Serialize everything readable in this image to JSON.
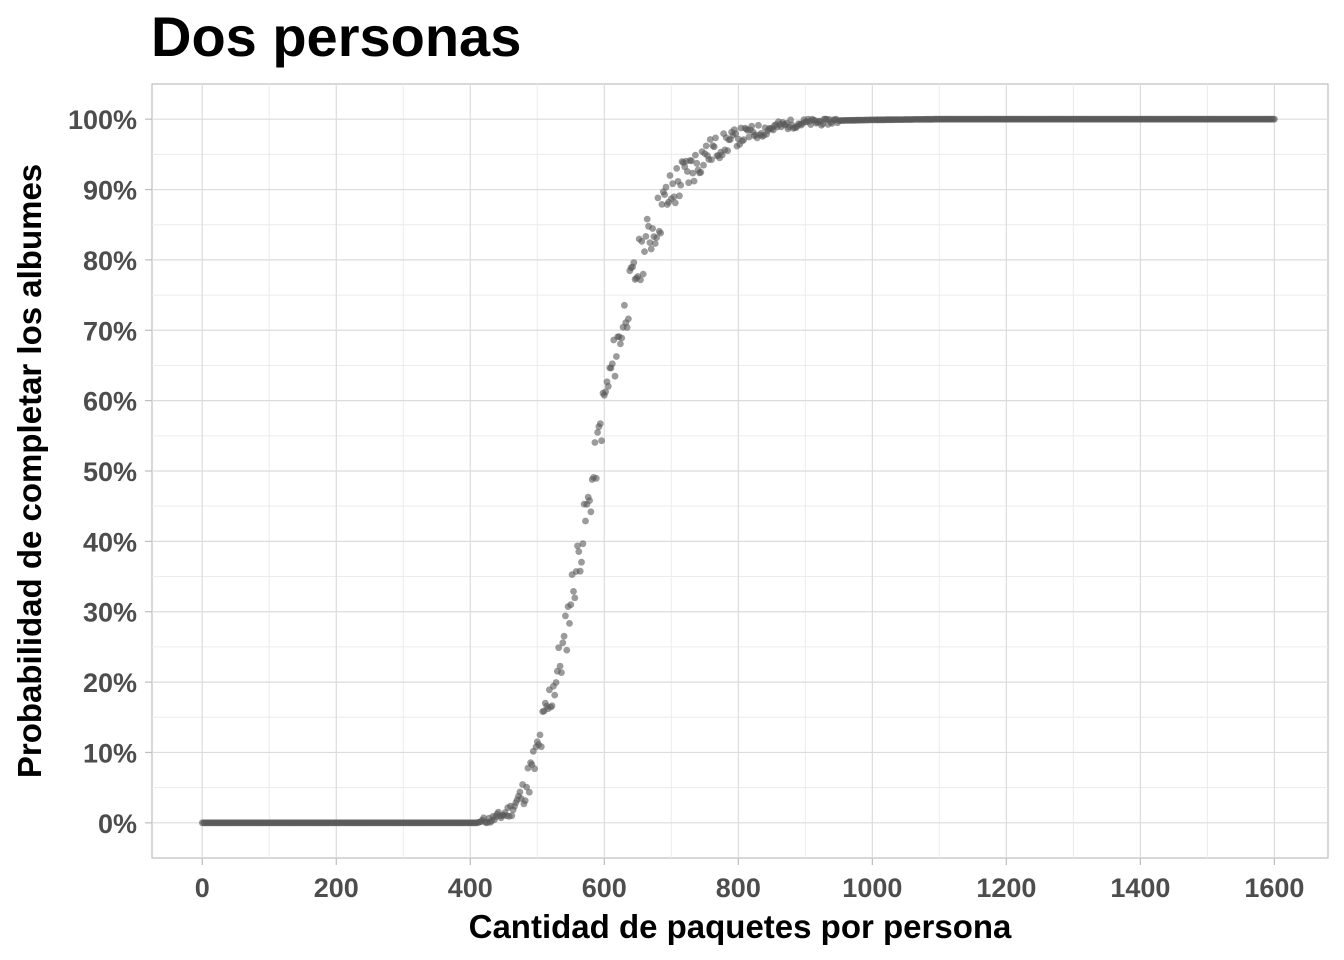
{
  "chart_data": {
    "type": "scatter",
    "title": "Dos personas",
    "xlabel": "Cantidad de paquetes por persona",
    "ylabel": "Probabilidad de completar los albumes",
    "xlim": [
      -75,
      1680
    ],
    "ylim": [
      -0.05,
      1.05
    ],
    "x_ticks": [
      0,
      200,
      400,
      600,
      800,
      1000,
      1200,
      1400,
      1600
    ],
    "x_tick_labels": [
      "0",
      "200",
      "400",
      "600",
      "800",
      "1000",
      "1200",
      "1400",
      "1600"
    ],
    "y_ticks": [
      0,
      0.1,
      0.2,
      0.3,
      0.4,
      0.5,
      0.6,
      0.7,
      0.8,
      0.9,
      1.0
    ],
    "y_tick_labels": [
      "0%",
      "10%",
      "20%",
      "30%",
      "40%",
      "50%",
      "60%",
      "70%",
      "80%",
      "90%",
      "100%"
    ],
    "grid": true,
    "point_color": "#595959",
    "point_opacity": 0.6,
    "series": [
      {
        "points": [
          [
            0,
            0
          ],
          [
            100,
            0
          ],
          [
            200,
            0
          ],
          [
            300,
            0
          ],
          [
            400,
            0
          ],
          [
            410,
            0
          ],
          [
            420,
            0.003
          ],
          [
            430,
            0.004
          ],
          [
            440,
            0.008
          ],
          [
            450,
            0.012
          ],
          [
            460,
            0.018
          ],
          [
            470,
            0.03
          ],
          [
            480,
            0.045
          ],
          [
            490,
            0.07
          ],
          [
            500,
            0.095
          ],
          [
            510,
            0.14
          ],
          [
            520,
            0.18
          ],
          [
            530,
            0.215
          ],
          [
            540,
            0.25
          ],
          [
            550,
            0.32
          ],
          [
            560,
            0.37
          ],
          [
            570,
            0.42
          ],
          [
            580,
            0.47
          ],
          [
            590,
            0.53
          ],
          [
            600,
            0.6
          ],
          [
            610,
            0.64
          ],
          [
            620,
            0.68
          ],
          [
            630,
            0.72
          ],
          [
            640,
            0.76
          ],
          [
            650,
            0.79
          ],
          [
            660,
            0.82
          ],
          [
            670,
            0.84
          ],
          [
            680,
            0.86
          ],
          [
            690,
            0.88
          ],
          [
            700,
            0.895
          ],
          [
            710,
            0.91
          ],
          [
            720,
            0.92
          ],
          [
            730,
            0.93
          ],
          [
            740,
            0.94
          ],
          [
            750,
            0.95
          ],
          [
            760,
            0.955
          ],
          [
            770,
            0.96
          ],
          [
            780,
            0.965
          ],
          [
            790,
            0.97
          ],
          [
            800,
            0.975
          ],
          [
            820,
            0.98
          ],
          [
            840,
            0.985
          ],
          [
            860,
            0.99
          ],
          [
            880,
            0.993
          ],
          [
            900,
            0.995
          ],
          [
            950,
            0.998
          ],
          [
            1000,
            0.999
          ],
          [
            1100,
            1.0
          ],
          [
            1200,
            1.0
          ],
          [
            1300,
            1.0
          ],
          [
            1400,
            1.0
          ],
          [
            1500,
            1.0
          ],
          [
            1600,
            1.0
          ]
        ]
      }
    ]
  }
}
